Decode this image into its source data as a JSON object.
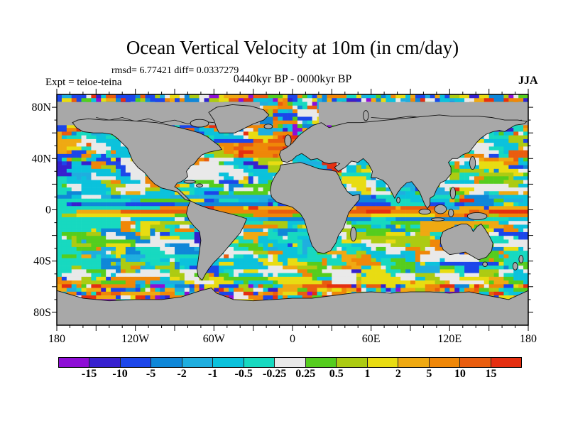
{
  "title": "Ocean Vertical Velocity at 10m (in cm/day)",
  "annotations": {
    "stats": "rmsd= 6.77421 diff= 0.0337279",
    "period": "0440kyr BP - 0000kyr BP",
    "experiment": "Expt = teioe-teina",
    "season": "JJA"
  },
  "chart_data": {
    "type": "heatmap",
    "subtype": "global ocean map, equirectangular projection",
    "field": "Ocean vertical velocity difference at 10 m depth",
    "units": "cm/day",
    "title": "Ocean Vertical Velocity at 10m (in cm/day)",
    "statistics": {
      "rmsd": 6.77421,
      "diff": 0.0337279
    },
    "comparison": "0440kyr BP - 0000kyr BP",
    "season": "JJA",
    "experiment": "teioe-teina",
    "x_axis": {
      "range": [
        -180,
        180
      ],
      "minor_tick_deg": 10,
      "major_tick_deg": 30,
      "labels": [
        {
          "pos": -180,
          "label": "180"
        },
        {
          "pos": -120,
          "label": "120W"
        },
        {
          "pos": -60,
          "label": "60W"
        },
        {
          "pos": 0,
          "label": "0"
        },
        {
          "pos": 60,
          "label": "60E"
        },
        {
          "pos": 120,
          "label": "120E"
        },
        {
          "pos": 180,
          "label": "180"
        }
      ]
    },
    "y_axis": {
      "range": [
        -90,
        90
      ],
      "minor_tick_deg": 10,
      "major_tick_deg": 20,
      "labels": [
        {
          "pos": 80,
          "label": "80N"
        },
        {
          "pos": 40,
          "label": "40N"
        },
        {
          "pos": 0,
          "label": "0"
        },
        {
          "pos": -40,
          "label": "40S"
        },
        {
          "pos": -80,
          "label": "80S"
        }
      ]
    },
    "colorbar": {
      "segment_count": 15,
      "boundaries": [
        -15,
        -10,
        -5,
        -2,
        -1,
        -0.5,
        -0.25,
        0.25,
        0.5,
        1,
        2,
        5,
        10,
        15
      ],
      "labels": [
        "-15",
        "-10",
        "-5",
        "-2",
        "-1",
        "-0.5",
        "-0.25",
        "0.25",
        "0.5",
        "1",
        "2",
        "5",
        "10",
        "15"
      ],
      "colors": [
        "#8E0ED6",
        "#3620CF",
        "#1C46EA",
        "#0F87D8",
        "#1FAEDF",
        "#0BC2DC",
        "#17D9C0",
        "#E9E9E9",
        "#55CD1E",
        "#ACCB12",
        "#E8DC12",
        "#EFA912",
        "#EF8708",
        "#E95D0F",
        "#E52F11"
      ]
    },
    "land_color": "#A8A8A8",
    "notable_features": [
      "strong orange positive anomaly band across the North Atlantic (~40-55N)",
      "zonal orange/blue banded anomalies along the equatorial Pacific and Indian Ocean",
      "multicolour speckled anomalies around the Antarctic coast and in the Arctic strip",
      "large white (near-zero) patches in the subtropical gyres",
      "grey land and Arctic/Antarctic ice shown with black coastlines"
    ]
  }
}
